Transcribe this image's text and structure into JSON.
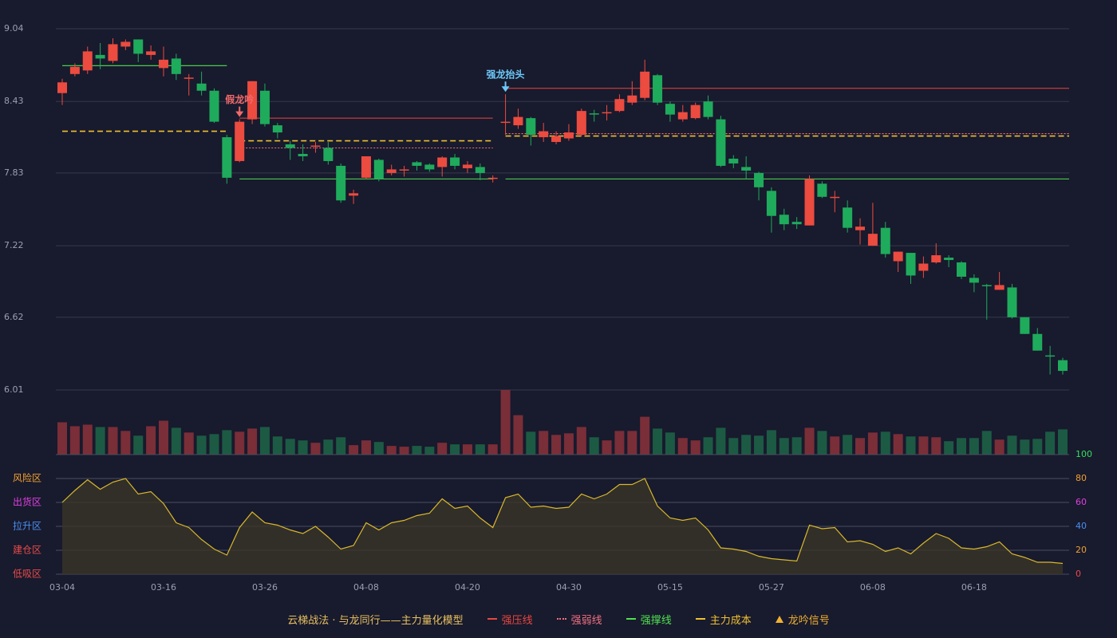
{
  "chart_data": {
    "type": "candlestick",
    "categories": [
      "03-04",
      null,
      null,
      null,
      null,
      null,
      null,
      null,
      "03-16",
      null,
      null,
      null,
      null,
      null,
      null,
      null,
      "03-26",
      null,
      null,
      null,
      null,
      null,
      null,
      null,
      "04-08",
      null,
      null,
      null,
      null,
      null,
      null,
      null,
      "04-20",
      null,
      null,
      null,
      null,
      null,
      null,
      null,
      "04-30",
      null,
      null,
      null,
      null,
      null,
      null,
      null,
      "05-15",
      null,
      null,
      null,
      null,
      null,
      null,
      null,
      "05-27",
      null,
      null,
      null,
      null,
      null,
      null,
      null,
      "06-08",
      null,
      null,
      null,
      null,
      null,
      null,
      null,
      "06-18",
      null,
      null,
      null,
      null,
      null,
      null,
      null
    ],
    "open": [
      8.5,
      8.66,
      8.69,
      8.82,
      8.77,
      8.89,
      8.95,
      8.82,
      8.71,
      8.79,
      8.62,
      8.58,
      8.52,
      8.13,
      7.93,
      8.28,
      8.52,
      8.23,
      8.07,
      7.99,
      8.05,
      8.04,
      7.89,
      7.64,
      7.79,
      7.94,
      7.83,
      7.85,
      7.92,
      7.9,
      7.88,
      7.96,
      7.87,
      7.88,
      7.78,
      8.25,
      8.23,
      8.29,
      8.13,
      8.09,
      8.12,
      8.15,
      8.33,
      8.33,
      8.35,
      8.42,
      8.46,
      8.65,
      8.41,
      8.28,
      8.29,
      8.43,
      8.28,
      7.95,
      7.88,
      7.83,
      7.68,
      7.48,
      7.42,
      7.39,
      7.74,
      7.62,
      7.54,
      7.35,
      7.22,
      7.37,
      7.09,
      7.16,
      7.01,
      7.08,
      7.12,
      7.08,
      6.95,
      6.89,
      6.85,
      6.87,
      6.62,
      6.48,
      6.3,
      6.26
    ],
    "high": [
      8.62,
      8.75,
      8.89,
      8.92,
      8.96,
      8.95,
      8.95,
      8.9,
      8.89,
      8.83,
      8.66,
      8.68,
      8.54,
      8.15,
      8.28,
      8.6,
      8.58,
      8.25,
      8.1,
      8.07,
      8.09,
      8.09,
      7.91,
      7.69,
      7.97,
      7.95,
      7.9,
      7.89,
      7.93,
      7.91,
      7.97,
      7.99,
      7.93,
      7.91,
      7.81,
      8.49,
      8.37,
      8.3,
      8.25,
      8.18,
      8.24,
      8.37,
      8.36,
      8.4,
      8.49,
      8.6,
      8.78,
      8.66,
      8.43,
      8.4,
      8.42,
      8.48,
      8.31,
      7.98,
      7.97,
      7.84,
      7.71,
      7.53,
      7.46,
      7.81,
      7.76,
      7.68,
      7.6,
      7.45,
      7.58,
      7.42,
      7.17,
      7.16,
      7.13,
      7.24,
      7.14,
      7.09,
      6.98,
      6.9,
      7.0,
      6.9,
      6.62,
      6.53,
      6.38,
      6.28
    ],
    "low": [
      8.4,
      8.64,
      8.66,
      8.7,
      8.75,
      8.86,
      8.76,
      8.78,
      8.64,
      8.61,
      8.48,
      8.48,
      8.25,
      7.74,
      7.92,
      8.24,
      8.22,
      8.12,
      7.94,
      7.93,
      8.0,
      7.9,
      7.58,
      7.57,
      7.78,
      7.76,
      7.81,
      7.8,
      7.85,
      7.84,
      7.8,
      7.86,
      7.83,
      7.77,
      7.75,
      8.15,
      8.2,
      8.06,
      8.09,
      8.07,
      8.1,
      8.14,
      8.26,
      8.27,
      8.34,
      8.4,
      8.44,
      8.4,
      8.26,
      8.26,
      8.28,
      8.28,
      7.88,
      7.87,
      7.78,
      7.6,
      7.33,
      7.35,
      7.36,
      7.39,
      7.62,
      7.5,
      7.33,
      7.23,
      7.22,
      7.12,
      7.0,
      6.9,
      6.95,
      7.07,
      7.04,
      6.94,
      6.83,
      6.6,
      6.85,
      6.61,
      6.48,
      6.34,
      6.14,
      6.14
    ],
    "close": [
      8.59,
      8.72,
      8.85,
      8.79,
      8.91,
      8.93,
      8.83,
      8.85,
      8.78,
      8.66,
      8.63,
      8.52,
      8.26,
      7.79,
      8.26,
      8.6,
      8.24,
      8.17,
      8.04,
      7.97,
      8.06,
      7.93,
      7.6,
      7.66,
      7.97,
      7.78,
      7.86,
      7.86,
      7.89,
      7.86,
      7.96,
      7.89,
      7.9,
      7.83,
      7.79,
      8.26,
      8.3,
      8.15,
      8.18,
      8.14,
      8.17,
      8.35,
      8.32,
      8.34,
      8.45,
      8.48,
      8.68,
      8.42,
      8.32,
      8.34,
      8.4,
      8.3,
      7.89,
      7.91,
      7.85,
      7.71,
      7.47,
      7.4,
      7.4,
      7.78,
      7.63,
      7.63,
      7.37,
      7.38,
      7.32,
      7.15,
      7.17,
      6.97,
      7.07,
      7.14,
      7.1,
      6.96,
      6.91,
      6.88,
      6.89,
      6.62,
      6.48,
      6.34,
      6.29,
      6.17
    ],
    "up_color": "#ec4b40",
    "down_color": "#1fab5c",
    "ylim": [
      6.01,
      9.04
    ],
    "yticks": [
      6.01,
      6.62,
      7.22,
      7.83,
      8.43,
      9.04
    ],
    "grid": true,
    "volume": [
      41,
      36,
      38,
      35,
      35,
      30,
      24,
      36,
      43,
      34,
      28,
      24,
      26,
      31,
      29,
      33,
      35,
      23,
      20,
      18,
      15,
      19,
      22,
      12,
      18,
      16,
      11,
      10,
      11,
      10,
      15,
      13,
      13,
      13,
      13,
      82,
      50,
      29,
      30,
      25,
      27,
      35,
      22,
      18,
      30,
      30,
      48,
      33,
      28,
      21,
      18,
      22,
      34,
      21,
      25,
      24,
      31,
      21,
      22,
      34,
      30,
      23,
      25,
      21,
      28,
      29,
      26,
      23,
      23,
      22,
      17,
      21,
      21,
      30,
      19,
      24,
      19,
      20,
      29,
      32
    ],
    "volume_up_color": "#7a2e38",
    "volume_down_color": "#1c5a44",
    "indicator": {
      "color": "#d9b82a",
      "fill": "#3a3428",
      "values": [
        60,
        70,
        79,
        71,
        77,
        80,
        67,
        69,
        59,
        43,
        39,
        29,
        21,
        16,
        39,
        52,
        43,
        41,
        37,
        34,
        40,
        31,
        21,
        24,
        43,
        37,
        43,
        45,
        49,
        51,
        63,
        55,
        57,
        47,
        39,
        64,
        67,
        56,
        57,
        55,
        56,
        67,
        63,
        67,
        75,
        75,
        80,
        57,
        47,
        45,
        47,
        37,
        22,
        21,
        19,
        15,
        13,
        12,
        11,
        41,
        38,
        39,
        27,
        28,
        25,
        19,
        22,
        17,
        26,
        34,
        30,
        22,
        21,
        23,
        27,
        17,
        14,
        10,
        10,
        9
      ]
    },
    "indicator_ylim": [
      0,
      100
    ],
    "indicator_yticks": [
      0,
      20,
      40,
      60,
      80,
      100
    ],
    "indicator_ytick_colors": [
      "#e84b4b",
      "#f0a030",
      "#4a8ff0",
      "#e040e0",
      "#f0a030",
      "#30e060"
    ],
    "zones": [
      {
        "label": "风险区",
        "value": 80,
        "color": "#f0a030"
      },
      {
        "label": "出货区",
        "value": 60,
        "color": "#e040e0"
      },
      {
        "label": "拉升区",
        "value": 40,
        "color": "#4a8ff0"
      },
      {
        "label": "建仓区",
        "value": 20,
        "color": "#e84b4b"
      },
      {
        "label": "低吸区",
        "value": 0,
        "color": "#e84b4b"
      }
    ],
    "legend_title": "云梯战法 · 与龙同行——主力量化模型",
    "levels": [
      {
        "name": "强压线",
        "color": "#e8473f",
        "style": "solid",
        "segments": [
          {
            "from": 14,
            "to": 34,
            "value": 8.29
          },
          {
            "from": 35,
            "to": 79,
            "value": 8.54
          }
        ]
      },
      {
        "name": "强弱线",
        "color": "#f07080",
        "style": "dotted",
        "segments": [
          {
            "from": 14,
            "to": 34,
            "value": 8.04
          },
          {
            "from": 35,
            "to": 79,
            "value": 8.16
          }
        ]
      },
      {
        "name": "强撑线",
        "color": "#50e050",
        "style": "solid",
        "segments": [
          {
            "from": 0,
            "to": 13,
            "value": 8.73
          },
          {
            "from": 14,
            "to": 34,
            "value": 7.78
          },
          {
            "from": 35,
            "to": 79,
            "value": 7.78
          }
        ]
      },
      {
        "name": "主力成本",
        "color": "#f0c030",
        "style": "dashed",
        "segments": [
          {
            "from": 0,
            "to": 13,
            "value": 8.18
          },
          {
            "from": 14,
            "to": 34,
            "value": 8.1
          },
          {
            "from": 35,
            "to": 79,
            "value": 8.14
          }
        ]
      }
    ],
    "signal_name": "龙吟信号",
    "signal_color": "#f0b030",
    "annotations": [
      {
        "text": "假龙吟",
        "index": 14,
        "color": "#f06a6a"
      },
      {
        "text": "强龙抬头",
        "index": 35,
        "color": "#6cc8f8"
      }
    ]
  }
}
